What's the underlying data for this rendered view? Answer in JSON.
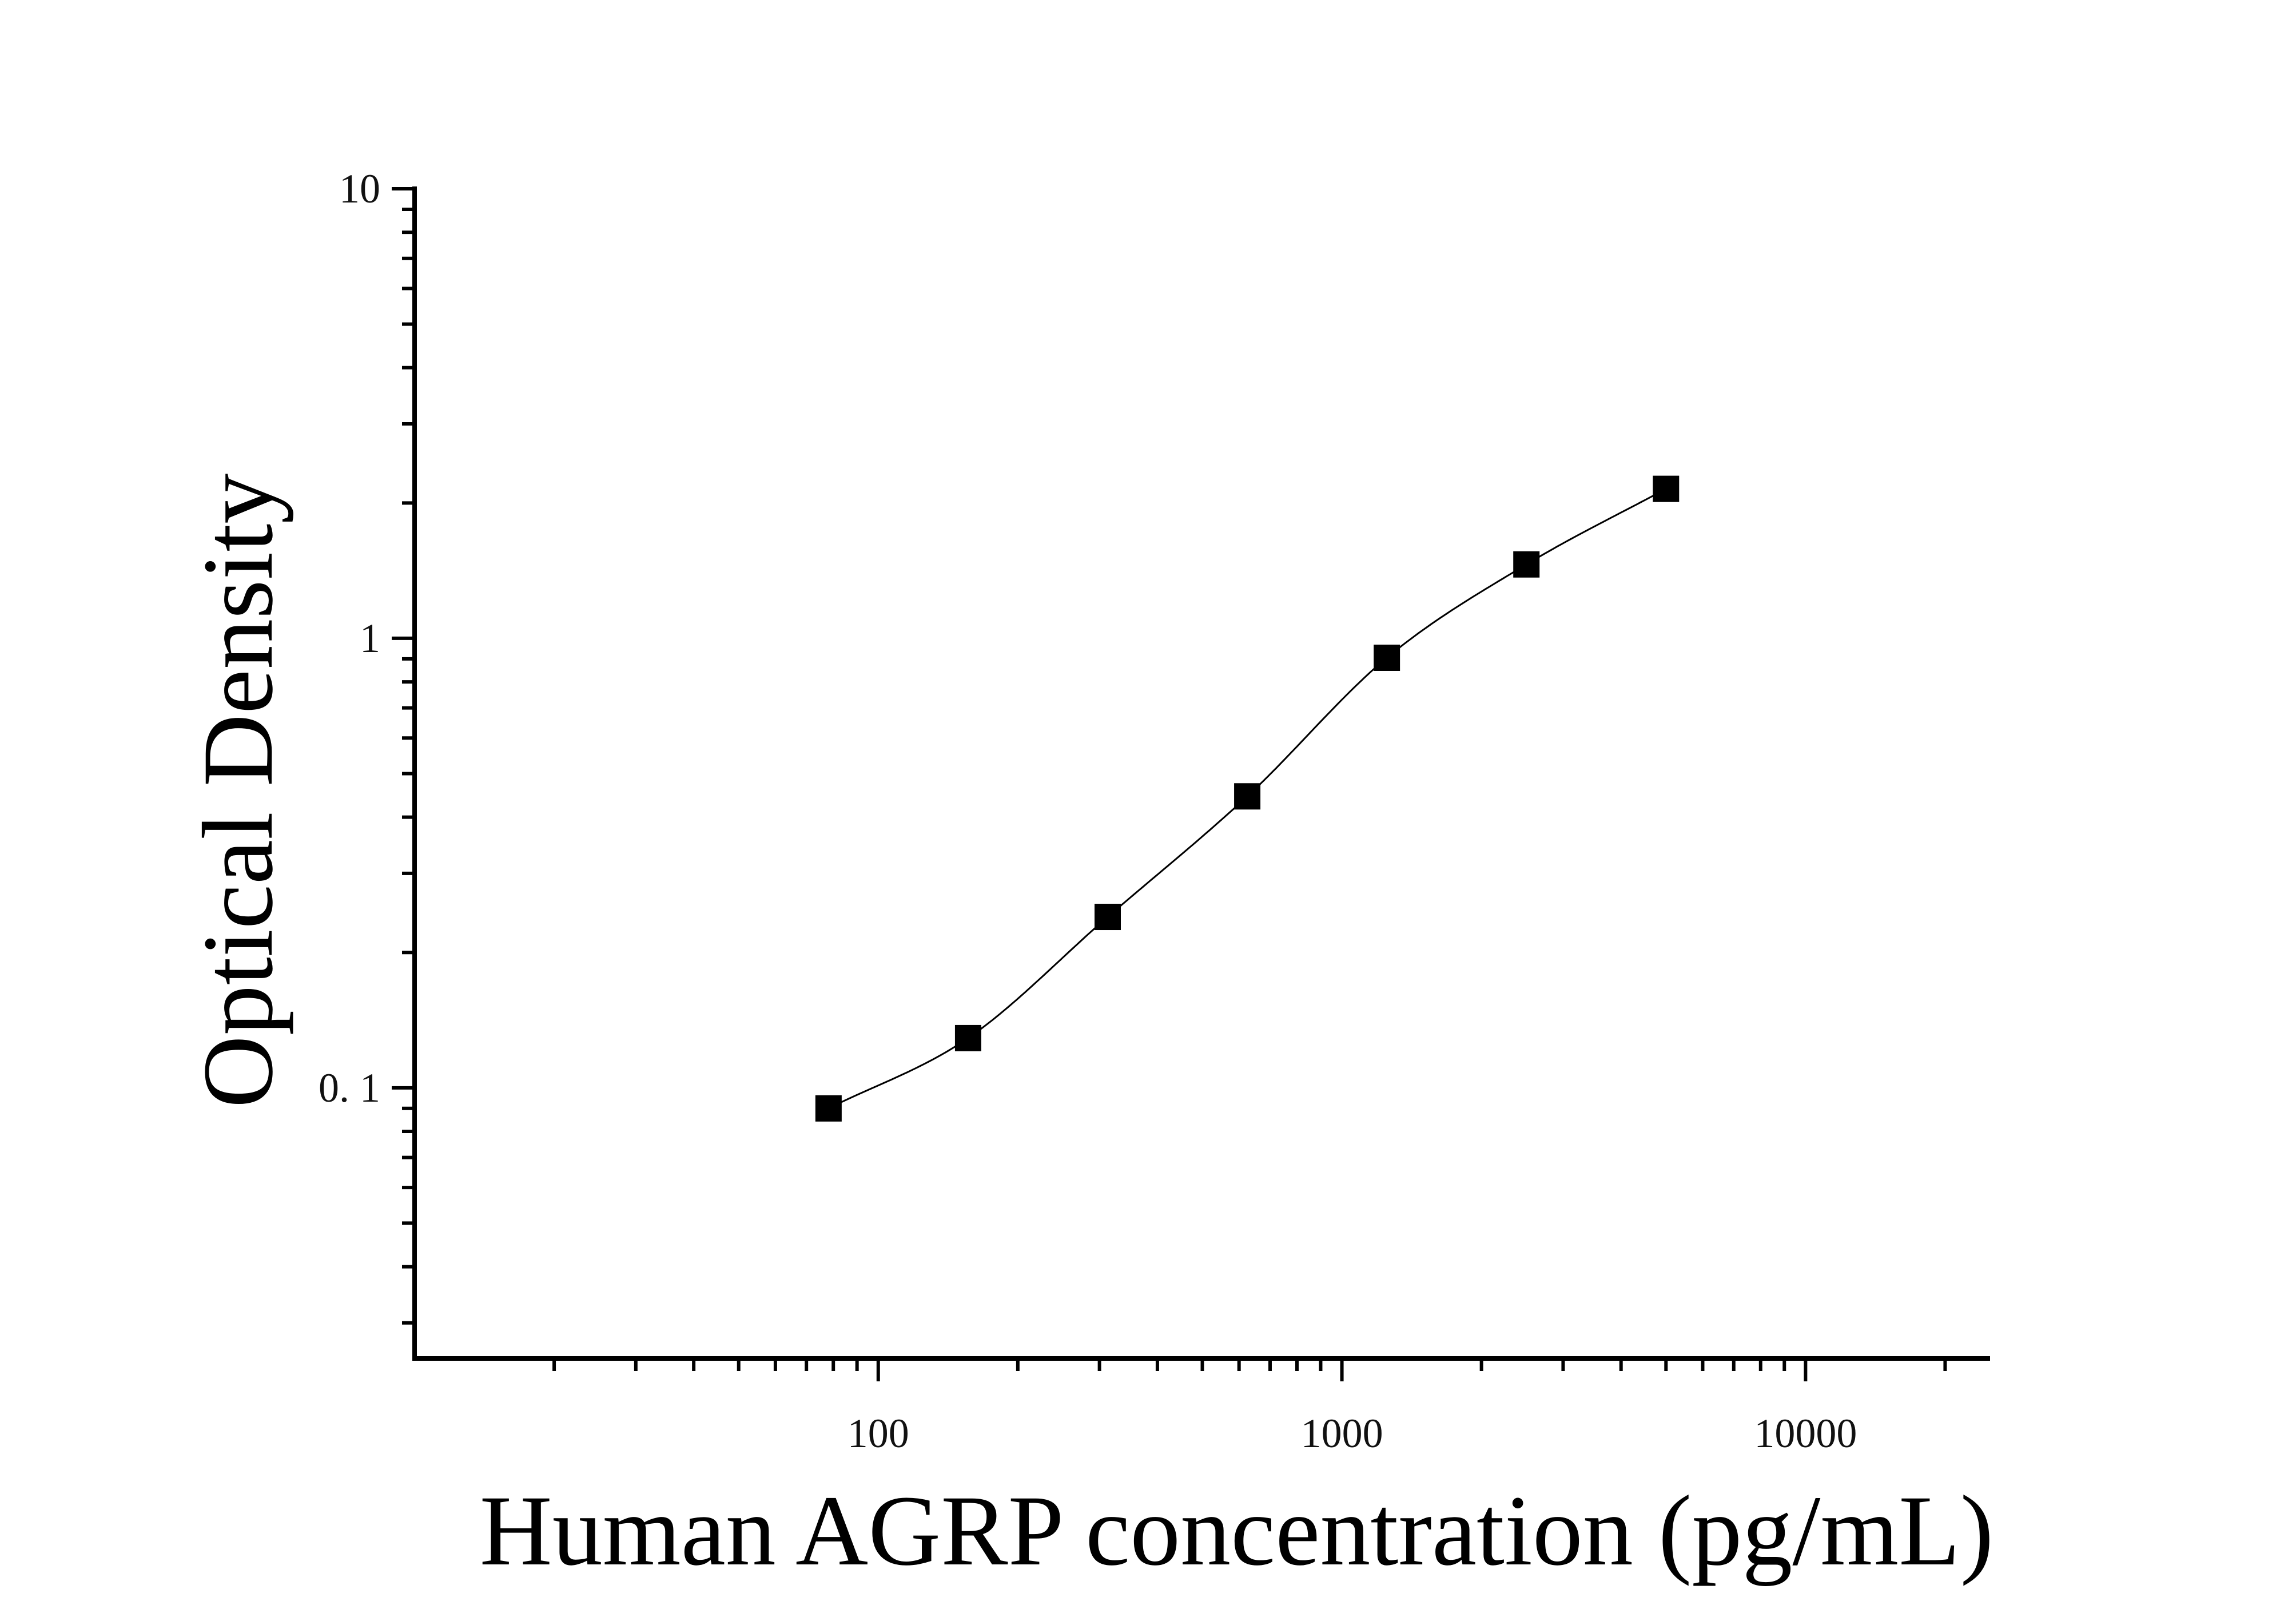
{
  "chart_data": {
    "type": "scatter",
    "title": "",
    "xlabel": "Human AGRP concentration (pg/mL)",
    "ylabel": "Optical Density",
    "xscale": "log",
    "yscale": "log",
    "xlim": [
      10,
      25000
    ],
    "ylim": [
      0.025,
      10
    ],
    "xticks": [
      {
        "value": 100,
        "label": "100"
      },
      {
        "value": 1000,
        "label": "1000"
      },
      {
        "value": 10000,
        "label": "10000"
      }
    ],
    "yticks": [
      {
        "value": 0.1,
        "label": "0. 1"
      },
      {
        "value": 1,
        "label": "1"
      },
      {
        "value": 10,
        "label": "10"
      }
    ],
    "grid": false,
    "legend": "none",
    "marker": "square",
    "color": "#000000",
    "series": [
      {
        "x": [
          78.125,
          156.25,
          312.5,
          625,
          1250,
          2500,
          5000
        ],
        "y": [
          0.09,
          0.129,
          0.24,
          0.445,
          0.905,
          1.46,
          2.15
        ]
      }
    ],
    "fit": {
      "type": "four-parameter-logistic",
      "x_range": [
        78,
        5000
      ]
    }
  }
}
